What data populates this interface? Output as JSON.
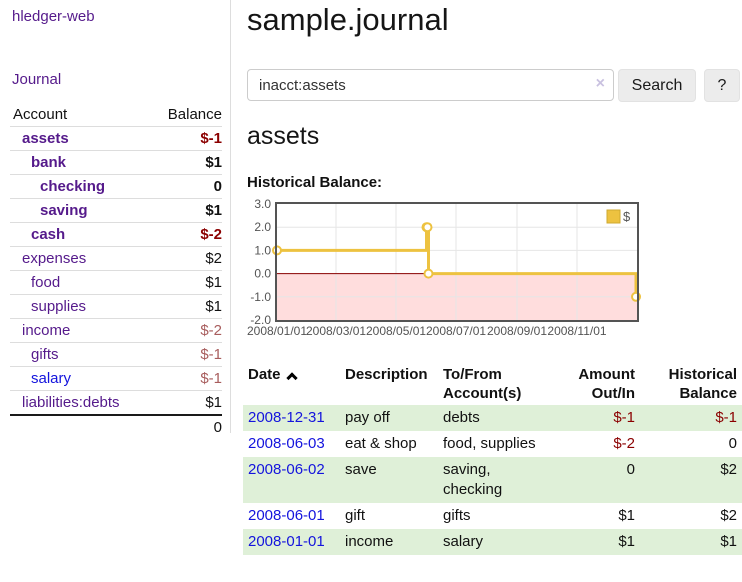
{
  "app": {
    "brand": "hledger-web",
    "nav_journal": "Journal"
  },
  "sidebar": {
    "accounts_table": {
      "col_account": "Account",
      "col_balance": "Balance",
      "rows": [
        {
          "name": "assets",
          "depth": 1,
          "bold": true,
          "balance": "$-1",
          "negative": "strong"
        },
        {
          "name": "bank",
          "depth": 2,
          "bold": true,
          "balance": "$1",
          "negative": null
        },
        {
          "name": "checking",
          "depth": 3,
          "bold": true,
          "balance": "0",
          "negative": null
        },
        {
          "name": "saving",
          "depth": 3,
          "bold": true,
          "balance": "$1",
          "negative": null
        },
        {
          "name": "cash",
          "depth": 2,
          "bold": true,
          "balance": "$-2",
          "negative": "strong"
        },
        {
          "name": "expenses",
          "depth": 1,
          "bold": false,
          "balance": "$2",
          "negative": null
        },
        {
          "name": "food",
          "depth": 2,
          "bold": false,
          "balance": "$1",
          "negative": null
        },
        {
          "name": "supplies",
          "depth": 2,
          "bold": false,
          "balance": "$1",
          "negative": null
        },
        {
          "name": "income",
          "depth": 1,
          "bold": false,
          "balance": "$-2",
          "negative": "soft"
        },
        {
          "name": "gifts",
          "depth": 2,
          "bold": false,
          "balance": "$-1",
          "negative": "soft"
        },
        {
          "name": "salary",
          "depth": 2,
          "bold": false,
          "balance": "$-1",
          "negative": "soft",
          "unvisited": true
        },
        {
          "name": "liabilities:debts",
          "depth": 1,
          "bold": false,
          "balance": "$1",
          "negative": null
        }
      ],
      "total": "0"
    }
  },
  "header": {
    "title": "sample.journal"
  },
  "search": {
    "value": "inacct:assets",
    "clear_icon": "×",
    "button_label": "Search",
    "help_label": "?"
  },
  "account_page": {
    "title": "assets",
    "chart_label": "Historical Balance:"
  },
  "chart_data": {
    "type": "line",
    "step": true,
    "title": "Historical Balance",
    "legend_position": "top-right",
    "grid": true,
    "ylim": [
      -2.0,
      3.0
    ],
    "yticks": [
      3.0,
      2.0,
      1.0,
      0.0,
      -1.0,
      -2.0
    ],
    "xticks": [
      "2008/01/01",
      "2008/03/01",
      "2008/05/01",
      "2008/07/01",
      "2008/09/01",
      "2008/11/01"
    ],
    "series": [
      {
        "name": "$",
        "color": "#edc240",
        "points": [
          [
            "2008-01-01",
            1
          ],
          [
            "2008-06-01",
            2
          ],
          [
            "2008-06-02",
            2
          ],
          [
            "2008-06-03",
            0
          ],
          [
            "2008-12-31",
            -1
          ]
        ]
      }
    ],
    "grid_color": "#e6e6e6",
    "border_color": "#545454",
    "zero_line_color": "#8b0000",
    "negative_fill": "#ffdddd",
    "tick_label_color": "#545454"
  },
  "register": {
    "headers": [
      "Date",
      "Description",
      "To/From Account(s)",
      "Amount Out/In",
      "Historical Balance"
    ],
    "sort_icon": "chevron-up",
    "rows": [
      {
        "date": "2008-12-31",
        "description": "pay off",
        "accounts": "debts",
        "amount": "$-1",
        "amount_negative": true,
        "balance": "$-1",
        "balance_negative": true
      },
      {
        "date": "2008-06-03",
        "description": "eat & shop",
        "accounts": "food, supplies",
        "amount": "$-2",
        "amount_negative": true,
        "balance": "0",
        "balance_negative": false
      },
      {
        "date": "2008-06-02",
        "description": "save",
        "accounts": "saving, checking",
        "amount": "0",
        "amount_negative": false,
        "balance": "$2",
        "balance_negative": false
      },
      {
        "date": "2008-06-01",
        "description": "gift",
        "accounts": "gifts",
        "amount": "$1",
        "amount_negative": false,
        "balance": "$2",
        "balance_negative": false
      },
      {
        "date": "2008-01-01",
        "description": "income",
        "accounts": "salary",
        "amount": "$1",
        "amount_negative": false,
        "balance": "$1",
        "balance_negative": false
      }
    ]
  },
  "colors": {
    "link_purple": "#551A8B",
    "link_blue": "#1414dd",
    "negative_strong": "#8b0000",
    "negative_soft": "#a85d5d",
    "row_stripe_green": "#dff0d8"
  }
}
